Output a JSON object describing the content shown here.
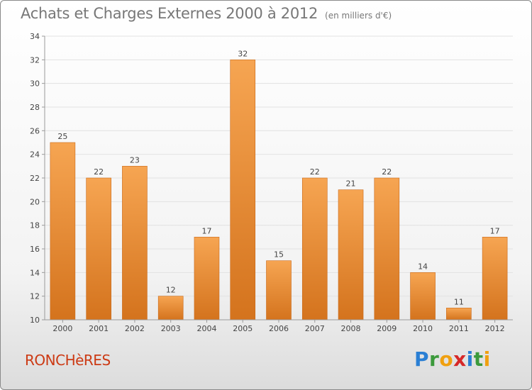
{
  "header": {
    "title": "Achats et Charges Externes 2000 à 2012",
    "unit": "(en milliers d'€)"
  },
  "footer": {
    "city": "RONCHèRES",
    "logo": {
      "letters": [
        "P",
        "r",
        "o",
        "x",
        "i",
        "t",
        "i"
      ],
      "colors": [
        "#2a7fd4",
        "#3c9a3c",
        "#f0a010",
        "#d62828",
        "#2a7fd4",
        "#3c9a3c",
        "#f0a010"
      ]
    }
  },
  "colors": {
    "bar_top": "#f6a552",
    "bar_bottom": "#d4731d",
    "bar_edge": "#c9691a",
    "axis": "#9a9a9a",
    "grid": "#e2e2e2",
    "text": "#444444"
  },
  "chart_data": {
    "type": "bar",
    "categories": [
      "2000",
      "2001",
      "2002",
      "2003",
      "2004",
      "2005",
      "2006",
      "2007",
      "2008",
      "2009",
      "2010",
      "2011",
      "2012"
    ],
    "values": [
      25,
      22,
      23,
      12,
      17,
      32,
      15,
      22,
      21,
      22,
      14,
      11,
      17
    ],
    "ylim": [
      10,
      34
    ],
    "yticks": [
      10,
      12,
      14,
      16,
      18,
      20,
      22,
      24,
      26,
      28,
      30,
      32,
      34
    ],
    "grid": true,
    "data_labels": true
  }
}
